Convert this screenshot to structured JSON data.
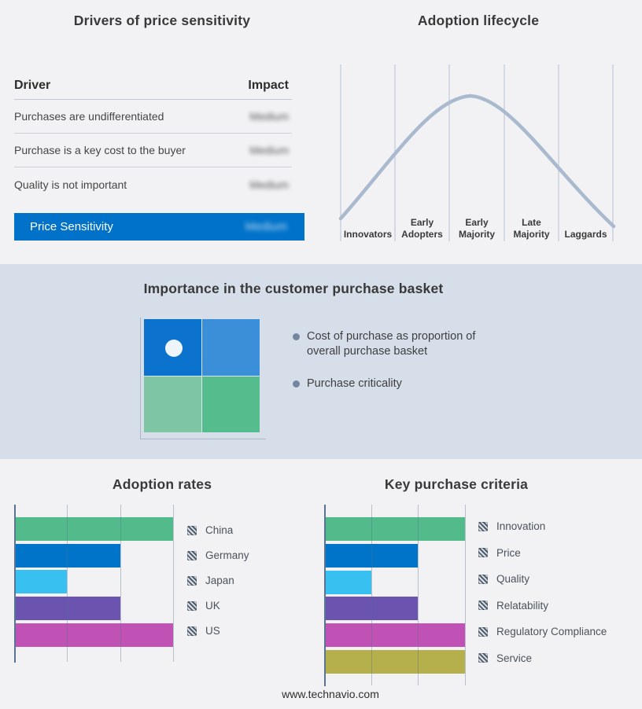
{
  "footer": {
    "url": "www.technavio.com"
  },
  "colors": {
    "background": "#f2f2f4",
    "band_background": "#d5dee9",
    "accent_blue": "#0072c9",
    "curve": "#a9b9ce",
    "axis": "#5a7492",
    "gridline": "#b6c0d2",
    "bullet_dot": "#72879f",
    "marker_dot": "#edf5fb",
    "hatch_swatch": "#4f5d6d"
  },
  "chart_data": [
    {
      "type": "table",
      "title": "Drivers of price sensitivity",
      "columns": [
        "Driver",
        "Impact"
      ],
      "rows": [
        [
          "Purchases are undifferentiated",
          "Medium"
        ],
        [
          "Purchase is a key cost to the buyer",
          "Medium"
        ],
        [
          "Quality is not important",
          "Medium"
        ],
        [
          "Price Sensitivity",
          "Medium"
        ]
      ],
      "notes": "Impact values appear blurred in source; last row is highlighted on a blue band"
    },
    {
      "type": "line",
      "title": "Adoption lifecycle",
      "categories": [
        "Innovators",
        "Early Adopters",
        "Early Majority",
        "Late Majority",
        "Laggards"
      ],
      "description": "Bell-shaped adoption curve rising from Innovators, peaking in Early Majority, falling through Laggards; no y-axis scale shown",
      "line_color": "#a9b9ce",
      "grid": "vertical separators only",
      "legend_position": "none"
    },
    {
      "type": "heatmap",
      "title": "Importance in the customer purchase basket",
      "grid": [
        [
          "#0b73cd",
          "#3b8ed8"
        ],
        [
          "#7ec5a4",
          "#54bc8d"
        ]
      ],
      "marker": {
        "quadrant": "top-left",
        "color": "#edf5fb"
      },
      "bullets": [
        "Cost of purchase as proportion of overall purchase basket",
        "Purchase criticality"
      ]
    },
    {
      "type": "bar",
      "title": "Adoption rates",
      "orientation": "horizontal",
      "categories": [
        "China",
        "Germany",
        "Japan",
        "UK",
        "US"
      ],
      "values": [
        3,
        2,
        1,
        2,
        3
      ],
      "colors": [
        "#52ba8b",
        "#0074c9",
        "#38c0f1",
        "#6a54af",
        "#c052b5"
      ],
      "xlim": [
        0,
        3
      ],
      "xlabel": "",
      "ylabel": "",
      "axis_tick_labels_shown": false,
      "legend_position": "right"
    },
    {
      "type": "bar",
      "title": "Key purchase criteria",
      "orientation": "horizontal",
      "categories": [
        "Innovation",
        "Price",
        "Quality",
        "Relatability",
        "Regulatory Compliance",
        "Service"
      ],
      "values": [
        3,
        2,
        1,
        2,
        3,
        3
      ],
      "colors": [
        "#52ba8b",
        "#0074c9",
        "#38c0f1",
        "#6a54af",
        "#c052b5",
        "#b5b04b"
      ],
      "xlim": [
        0,
        3
      ],
      "xlabel": "",
      "ylabel": "",
      "axis_tick_labels_shown": false,
      "legend_position": "right"
    }
  ]
}
